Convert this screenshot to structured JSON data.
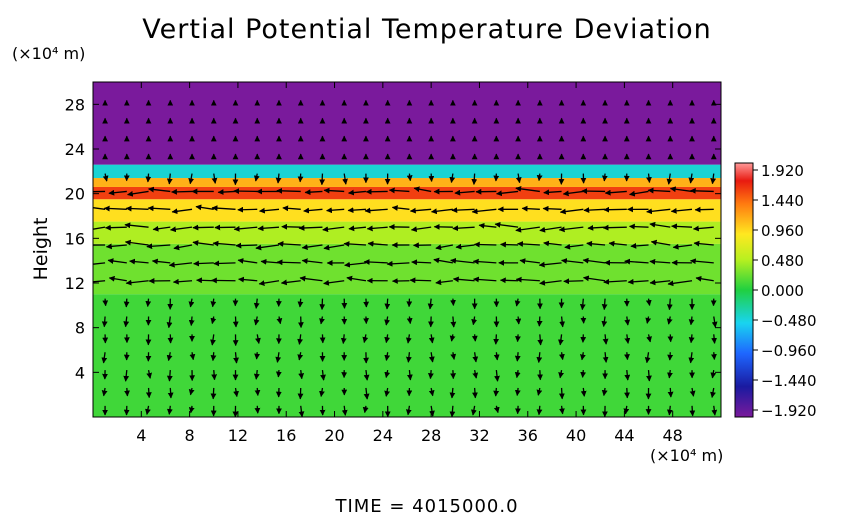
{
  "chart_data": {
    "type": "heatmap",
    "title": "Vertial Potential Temperature Deviation",
    "ylabel": "Height",
    "y_unit": "(×10⁴ m)",
    "x_unit": "(×10⁴ m)",
    "x_ticks": [
      "4",
      "8",
      "12",
      "16",
      "20",
      "24",
      "28",
      "32",
      "36",
      "40",
      "44",
      "48"
    ],
    "y_ticks": [
      "4",
      "8",
      "12",
      "16",
      "20",
      "24",
      "28"
    ],
    "xlim": [
      0,
      52
    ],
    "ylim": [
      0,
      30
    ],
    "colorbar": {
      "labels": [
        "1.920",
        "1.440",
        "0.960",
        "0.480",
        "0.000",
        "−0.480",
        "−0.960",
        "−1.440",
        "−1.920"
      ],
      "range": [
        -1.92,
        1.92
      ]
    },
    "bands": [
      {
        "y0": 0,
        "y1": 11,
        "value": 0.1
      },
      {
        "y0": 11,
        "y1": 15.5,
        "value": 0.25
      },
      {
        "y0": 15.5,
        "y1": 17.5,
        "value": 0.45
      },
      {
        "y0": 17.5,
        "y1": 19.5,
        "value": 1.0
      },
      {
        "y0": 19.5,
        "y1": 20.6,
        "value": 1.6
      },
      {
        "y0": 20.6,
        "y1": 21.4,
        "value": 1.2
      },
      {
        "y0": 21.4,
        "y1": 22.6,
        "value": -0.4
      },
      {
        "y0": 22.6,
        "y1": 30,
        "value": -1.92
      }
    ],
    "vector_field": "wind arrows overlaid on the field"
  },
  "footer": {
    "time": "TIME  =  4015000.0"
  }
}
